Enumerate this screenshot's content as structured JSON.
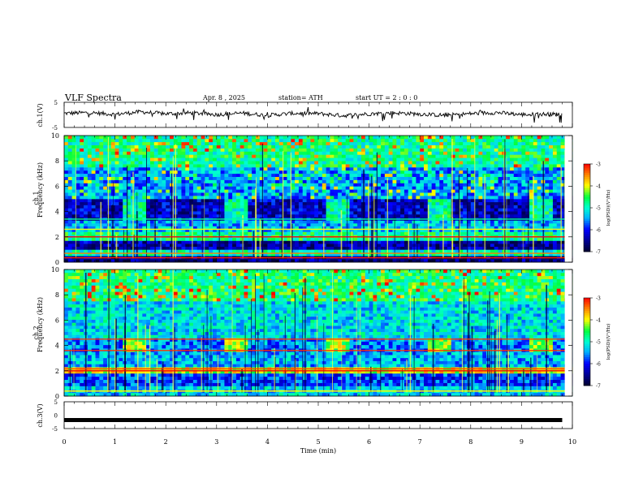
{
  "header": {
    "title": "VLF  Spectra",
    "date": "Apr. 8  , 2025",
    "station": "station= ATH",
    "start": "start  UT  =   2  : 0   : 0"
  },
  "chart_data": [
    {
      "type": "line",
      "name": "ch1-waveform",
      "ylabel": "ch.1(V)",
      "ylim": [
        -5,
        5
      ],
      "yticks": [
        "5",
        "-5"
      ],
      "xlim": [
        0,
        10
      ],
      "x": [
        0,
        0.5,
        1,
        1.5,
        2,
        2.5,
        3,
        3.5,
        4,
        4.5,
        5,
        5.5,
        6,
        6.5,
        7,
        7.5,
        8,
        8.5,
        9,
        9.5,
        9.8
      ],
      "y": [
        0.6,
        0.9,
        0.2,
        1.2,
        0.4,
        0.8,
        0.1,
        0.7,
        -0.2,
        0.6,
        0.5,
        -0.3,
        0.4,
        0.8,
        0.3,
        -0.2,
        0.5,
        0.9,
        0.1,
        0.3,
        0.2
      ]
    },
    {
      "type": "heatmap",
      "name": "ch1-spectrogram",
      "ylabel": "ch.1\nFrequency (kHz)",
      "ylim": [
        0,
        10
      ],
      "yticks": [
        "0",
        "2",
        "4",
        "6",
        "8",
        "10"
      ],
      "xlim": [
        0,
        10
      ],
      "colorbar": {
        "label": "log(PSD)(V²/Hz)",
        "min": -7,
        "max": -3,
        "ticks": [
          "-3",
          "-4",
          "-5",
          "-6",
          "-7"
        ]
      },
      "bands": [
        {
          "f0": 0,
          "f1": 0.5,
          "level": -6.6
        },
        {
          "f0": 0.5,
          "f1": 1.0,
          "level": -5.0
        },
        {
          "f0": 1.0,
          "f1": 1.7,
          "level": -6.4
        },
        {
          "f0": 1.7,
          "f1": 2.4,
          "level": -4.8
        },
        {
          "f0": 2.4,
          "f1": 3.3,
          "level": -5.4
        },
        {
          "f0": 3.3,
          "f1": 5.0,
          "level": -6.3
        },
        {
          "f0": 5.0,
          "f1": 7.5,
          "level": -5.5
        },
        {
          "f0": 7.5,
          "f1": 10,
          "level": -4.8
        }
      ]
    },
    {
      "type": "heatmap",
      "name": "ch2-spectrogram",
      "ylabel": "ch.2\nFrequency (kHz)",
      "ylim": [
        0,
        10
      ],
      "yticks": [
        "0",
        "2",
        "4",
        "6",
        "8",
        "10"
      ],
      "xlim": [
        0,
        10
      ],
      "colorbar": {
        "label": "log(PSD)(V²/Hz)",
        "min": -7,
        "max": -3,
        "ticks": [
          "-3",
          "-4",
          "-5",
          "-6",
          "-7"
        ]
      },
      "bands": [
        {
          "f0": 0,
          "f1": 0.8,
          "level": -5.3
        },
        {
          "f0": 0.8,
          "f1": 1.8,
          "level": -5.8
        },
        {
          "f0": 1.8,
          "f1": 2.3,
          "level": -4.0
        },
        {
          "f0": 2.3,
          "f1": 3.5,
          "level": -5.4
        },
        {
          "f0": 3.5,
          "f1": 4.6,
          "level": -5.6
        },
        {
          "f0": 4.6,
          "f1": 7.5,
          "level": -5.2
        },
        {
          "f0": 7.5,
          "f1": 10,
          "level": -4.7
        }
      ]
    },
    {
      "type": "line",
      "name": "ch3-waveform",
      "ylabel": "ch.3(V)",
      "ylim": [
        -5,
        5
      ],
      "yticks": [
        "5",
        "0",
        "-5"
      ],
      "xlim": [
        0,
        10
      ],
      "x": [
        0,
        9.8
      ],
      "y": [
        -1.8,
        -1.8
      ]
    }
  ],
  "xaxis": {
    "label": "Time  (min)",
    "ticks": [
      "0",
      "1",
      "2",
      "3",
      "4",
      "5",
      "6",
      "7",
      "8",
      "9",
      "10"
    ]
  },
  "colors": {
    "dark_navy": "#000060",
    "blue": "#0000ff",
    "cyan": "#00d0ff",
    "green": "#00ff40",
    "yellow": "#ffff00",
    "red": "#ff0000"
  }
}
